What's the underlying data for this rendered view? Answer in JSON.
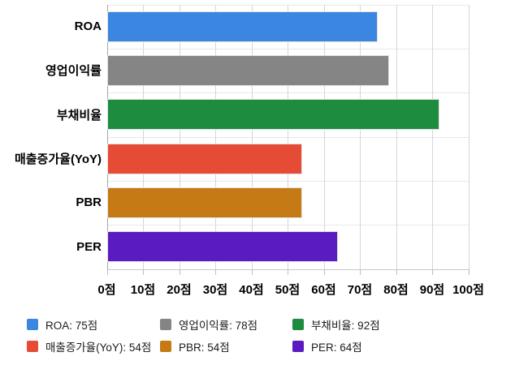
{
  "chart_data": {
    "type": "bar",
    "orientation": "horizontal",
    "title": "",
    "categories": [
      "ROA",
      "영업이익률",
      "부채비율",
      "매출증가율(YoY)",
      "PBR",
      "PER"
    ],
    "values": [
      75,
      78,
      92,
      54,
      54,
      64
    ],
    "value_unit": "점",
    "series_colors": [
      "#3B86E0",
      "#858585",
      "#1E8C3E",
      "#E64B36",
      "#C67A15",
      "#5A1CC0"
    ],
    "xlim": [
      0,
      100
    ],
    "x_tick_step": 10,
    "x_tick_labels": [
      "0점",
      "10점",
      "20점",
      "30점",
      "40점",
      "50점",
      "60점",
      "70점",
      "80점",
      "90점",
      "100점"
    ],
    "grid": true,
    "legend_position": "bottom",
    "legend_items": [
      {
        "label": "ROA: 75점",
        "color": "#3B86E0"
      },
      {
        "label": "영업이익률: 78점",
        "color": "#858585"
      },
      {
        "label": "부채비율: 92점",
        "color": "#1E8C3E"
      },
      {
        "label": "매출증가율(YoY): 54점",
        "color": "#E64B36"
      },
      {
        "label": "PBR: 54점",
        "color": "#C67A15"
      },
      {
        "label": "PER: 64점",
        "color": "#5A1CC0"
      }
    ]
  },
  "style_colors": {
    "background": "#ffffff",
    "gridline": "#d6d6d6",
    "axis_baseline": "#a6a6a6",
    "band_separator": "#e8e8e8",
    "tick": "#bdbdbd",
    "axis_text": "#000000",
    "legend_text": "#1b1b1b"
  }
}
